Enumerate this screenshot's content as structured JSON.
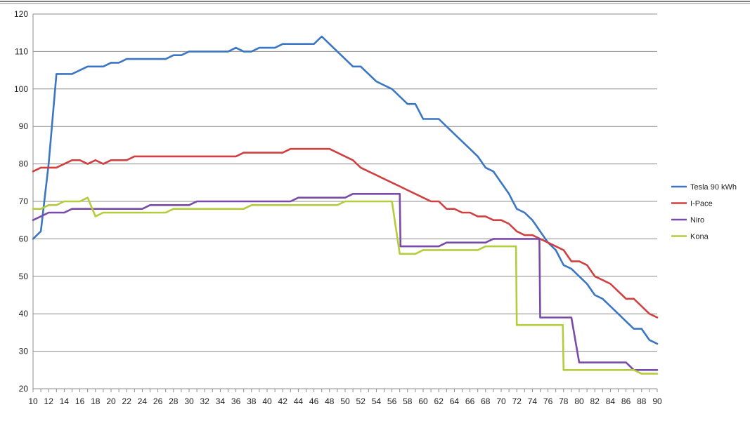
{
  "chart_data": {
    "type": "line",
    "title": "",
    "xlabel": "",
    "ylabel": "",
    "xlim": [
      10,
      90
    ],
    "ylim": [
      20,
      120
    ],
    "yticks": [
      20,
      30,
      40,
      50,
      60,
      70,
      80,
      90,
      100,
      110,
      120
    ],
    "xticks": [
      10,
      12,
      14,
      16,
      18,
      20,
      22,
      24,
      26,
      28,
      30,
      32,
      34,
      36,
      38,
      40,
      42,
      44,
      46,
      48,
      50,
      52,
      54,
      56,
      58,
      60,
      62,
      64,
      66,
      68,
      70,
      72,
      74,
      76,
      78,
      80,
      82,
      84,
      86,
      88,
      90
    ],
    "grid": "horizontal",
    "legend_position": "right",
    "series": [
      {
        "name": "Tesla 90 kWh",
        "color": "#3a76c4",
        "x": [
          10,
          11,
          12,
          13,
          14,
          15,
          16,
          17,
          18,
          19,
          20,
          21,
          22,
          23,
          24,
          25,
          26,
          27,
          28,
          29,
          30,
          31,
          32,
          33,
          34,
          35,
          36,
          37,
          38,
          39,
          40,
          41,
          42,
          43,
          44,
          45,
          46,
          47,
          48,
          49,
          50,
          51,
          52,
          53,
          54,
          55,
          56,
          57,
          58,
          59,
          60,
          61,
          62,
          63,
          64,
          65,
          66,
          67,
          68,
          69,
          70,
          71,
          72,
          73,
          74,
          75,
          76,
          77,
          78,
          79,
          80,
          81,
          82,
          83,
          84,
          85,
          86,
          87,
          88,
          89,
          90
        ],
        "values": [
          60,
          62,
          80,
          104,
          104,
          104,
          105,
          106,
          106,
          106,
          107,
          107,
          108,
          108,
          108,
          108,
          108,
          108,
          109,
          109,
          110,
          110,
          110,
          110,
          110,
          110,
          111,
          110,
          110,
          111,
          111,
          111,
          112,
          112,
          112,
          112,
          112,
          114,
          112,
          110,
          108,
          106,
          106,
          104,
          102,
          101,
          100,
          98,
          96,
          96,
          92,
          92,
          92,
          90,
          88,
          86,
          84,
          82,
          79,
          78,
          75,
          72,
          68,
          67,
          65,
          62,
          59,
          57,
          53,
          52,
          50,
          48,
          45,
          44,
          42,
          40,
          38,
          36,
          36,
          33,
          32
        ]
      },
      {
        "name": "I-Pace",
        "color": "#d04040",
        "x": [
          10,
          11,
          12,
          13,
          14,
          15,
          16,
          17,
          18,
          19,
          20,
          21,
          22,
          23,
          24,
          25,
          26,
          27,
          28,
          29,
          30,
          31,
          32,
          33,
          34,
          35,
          36,
          37,
          38,
          39,
          40,
          41,
          42,
          43,
          44,
          45,
          46,
          47,
          48,
          49,
          50,
          51,
          52,
          53,
          54,
          55,
          56,
          57,
          58,
          59,
          60,
          61,
          62,
          63,
          64,
          65,
          66,
          67,
          68,
          69,
          70,
          71,
          72,
          73,
          74,
          75,
          76,
          77,
          78,
          79,
          80,
          81,
          82,
          83,
          84,
          85,
          86,
          87,
          88,
          89,
          90
        ],
        "values": [
          78,
          79,
          79,
          79,
          80,
          81,
          81,
          80,
          81,
          80,
          81,
          81,
          81,
          82,
          82,
          82,
          82,
          82,
          82,
          82,
          82,
          82,
          82,
          82,
          82,
          82,
          82,
          83,
          83,
          83,
          83,
          83,
          83,
          84,
          84,
          84,
          84,
          84,
          84,
          83,
          82,
          81,
          79,
          78,
          77,
          76,
          75,
          74,
          73,
          72,
          71,
          70,
          70,
          68,
          68,
          67,
          67,
          66,
          66,
          65,
          65,
          64,
          62,
          61,
          61,
          60,
          59,
          58,
          57,
          54,
          54,
          53,
          50,
          49,
          48,
          46,
          44,
          44,
          42,
          40,
          39
        ]
      },
      {
        "name": "Niro",
        "color": "#7a4aa8",
        "x": [
          10,
          11,
          12,
          13,
          14,
          15,
          16,
          17,
          18,
          19,
          20,
          21,
          22,
          23,
          24,
          25,
          26,
          27,
          28,
          29,
          30,
          31,
          32,
          33,
          34,
          35,
          36,
          37,
          38,
          39,
          40,
          41,
          42,
          43,
          44,
          45,
          46,
          47,
          48,
          49,
          50,
          51,
          52,
          53,
          54,
          55,
          56,
          57,
          57.1,
          58,
          59,
          60,
          61,
          62,
          63,
          64,
          65,
          66,
          67,
          68,
          69,
          70,
          71,
          72,
          73,
          74,
          74.9,
          75,
          76,
          77,
          78,
          79,
          80,
          81,
          82,
          83,
          84,
          85,
          86,
          87,
          88,
          89,
          90
        ],
        "values": [
          65,
          66,
          67,
          67,
          67,
          68,
          68,
          68,
          68,
          68,
          68,
          68,
          68,
          68,
          68,
          69,
          69,
          69,
          69,
          69,
          69,
          70,
          70,
          70,
          70,
          70,
          70,
          70,
          70,
          70,
          70,
          70,
          70,
          70,
          71,
          71,
          71,
          71,
          71,
          71,
          71,
          72,
          72,
          72,
          72,
          72,
          72,
          72,
          58,
          58,
          58,
          58,
          58,
          58,
          59,
          59,
          59,
          59,
          59,
          59,
          60,
          60,
          60,
          60,
          60,
          60,
          60,
          39,
          39,
          39,
          39,
          39,
          27,
          27,
          27,
          27,
          27,
          27,
          27,
          25,
          25,
          25,
          25
        ]
      },
      {
        "name": "Kona",
        "color": "#b5cc3c",
        "x": [
          10,
          11,
          12,
          13,
          14,
          15,
          16,
          17,
          18,
          19,
          20,
          21,
          22,
          23,
          24,
          25,
          26,
          27,
          28,
          29,
          30,
          31,
          32,
          33,
          34,
          35,
          36,
          37,
          38,
          39,
          40,
          41,
          42,
          43,
          44,
          45,
          46,
          47,
          48,
          49,
          50,
          51,
          52,
          53,
          54,
          55,
          56,
          57,
          58,
          59,
          60,
          61,
          62,
          63,
          64,
          65,
          66,
          67,
          68,
          69,
          70,
          71,
          71.9,
          72,
          73,
          74,
          75,
          76,
          77,
          77.9,
          78,
          79,
          80,
          81,
          82,
          83,
          84,
          85,
          86,
          87,
          88,
          89,
          90
        ],
        "values": [
          68,
          68,
          69,
          69,
          70,
          70,
          70,
          71,
          66,
          67,
          67,
          67,
          67,
          67,
          67,
          67,
          67,
          67,
          68,
          68,
          68,
          68,
          68,
          68,
          68,
          68,
          68,
          68,
          69,
          69,
          69,
          69,
          69,
          69,
          69,
          69,
          69,
          69,
          69,
          69,
          70,
          70,
          70,
          70,
          70,
          70,
          70,
          56,
          56,
          56,
          57,
          57,
          57,
          57,
          57,
          57,
          57,
          57,
          58,
          58,
          58,
          58,
          58,
          37,
          37,
          37,
          37,
          37,
          37,
          37,
          25,
          25,
          25,
          25,
          25,
          25,
          25,
          25,
          25,
          25,
          24,
          24,
          24
        ]
      }
    ]
  }
}
